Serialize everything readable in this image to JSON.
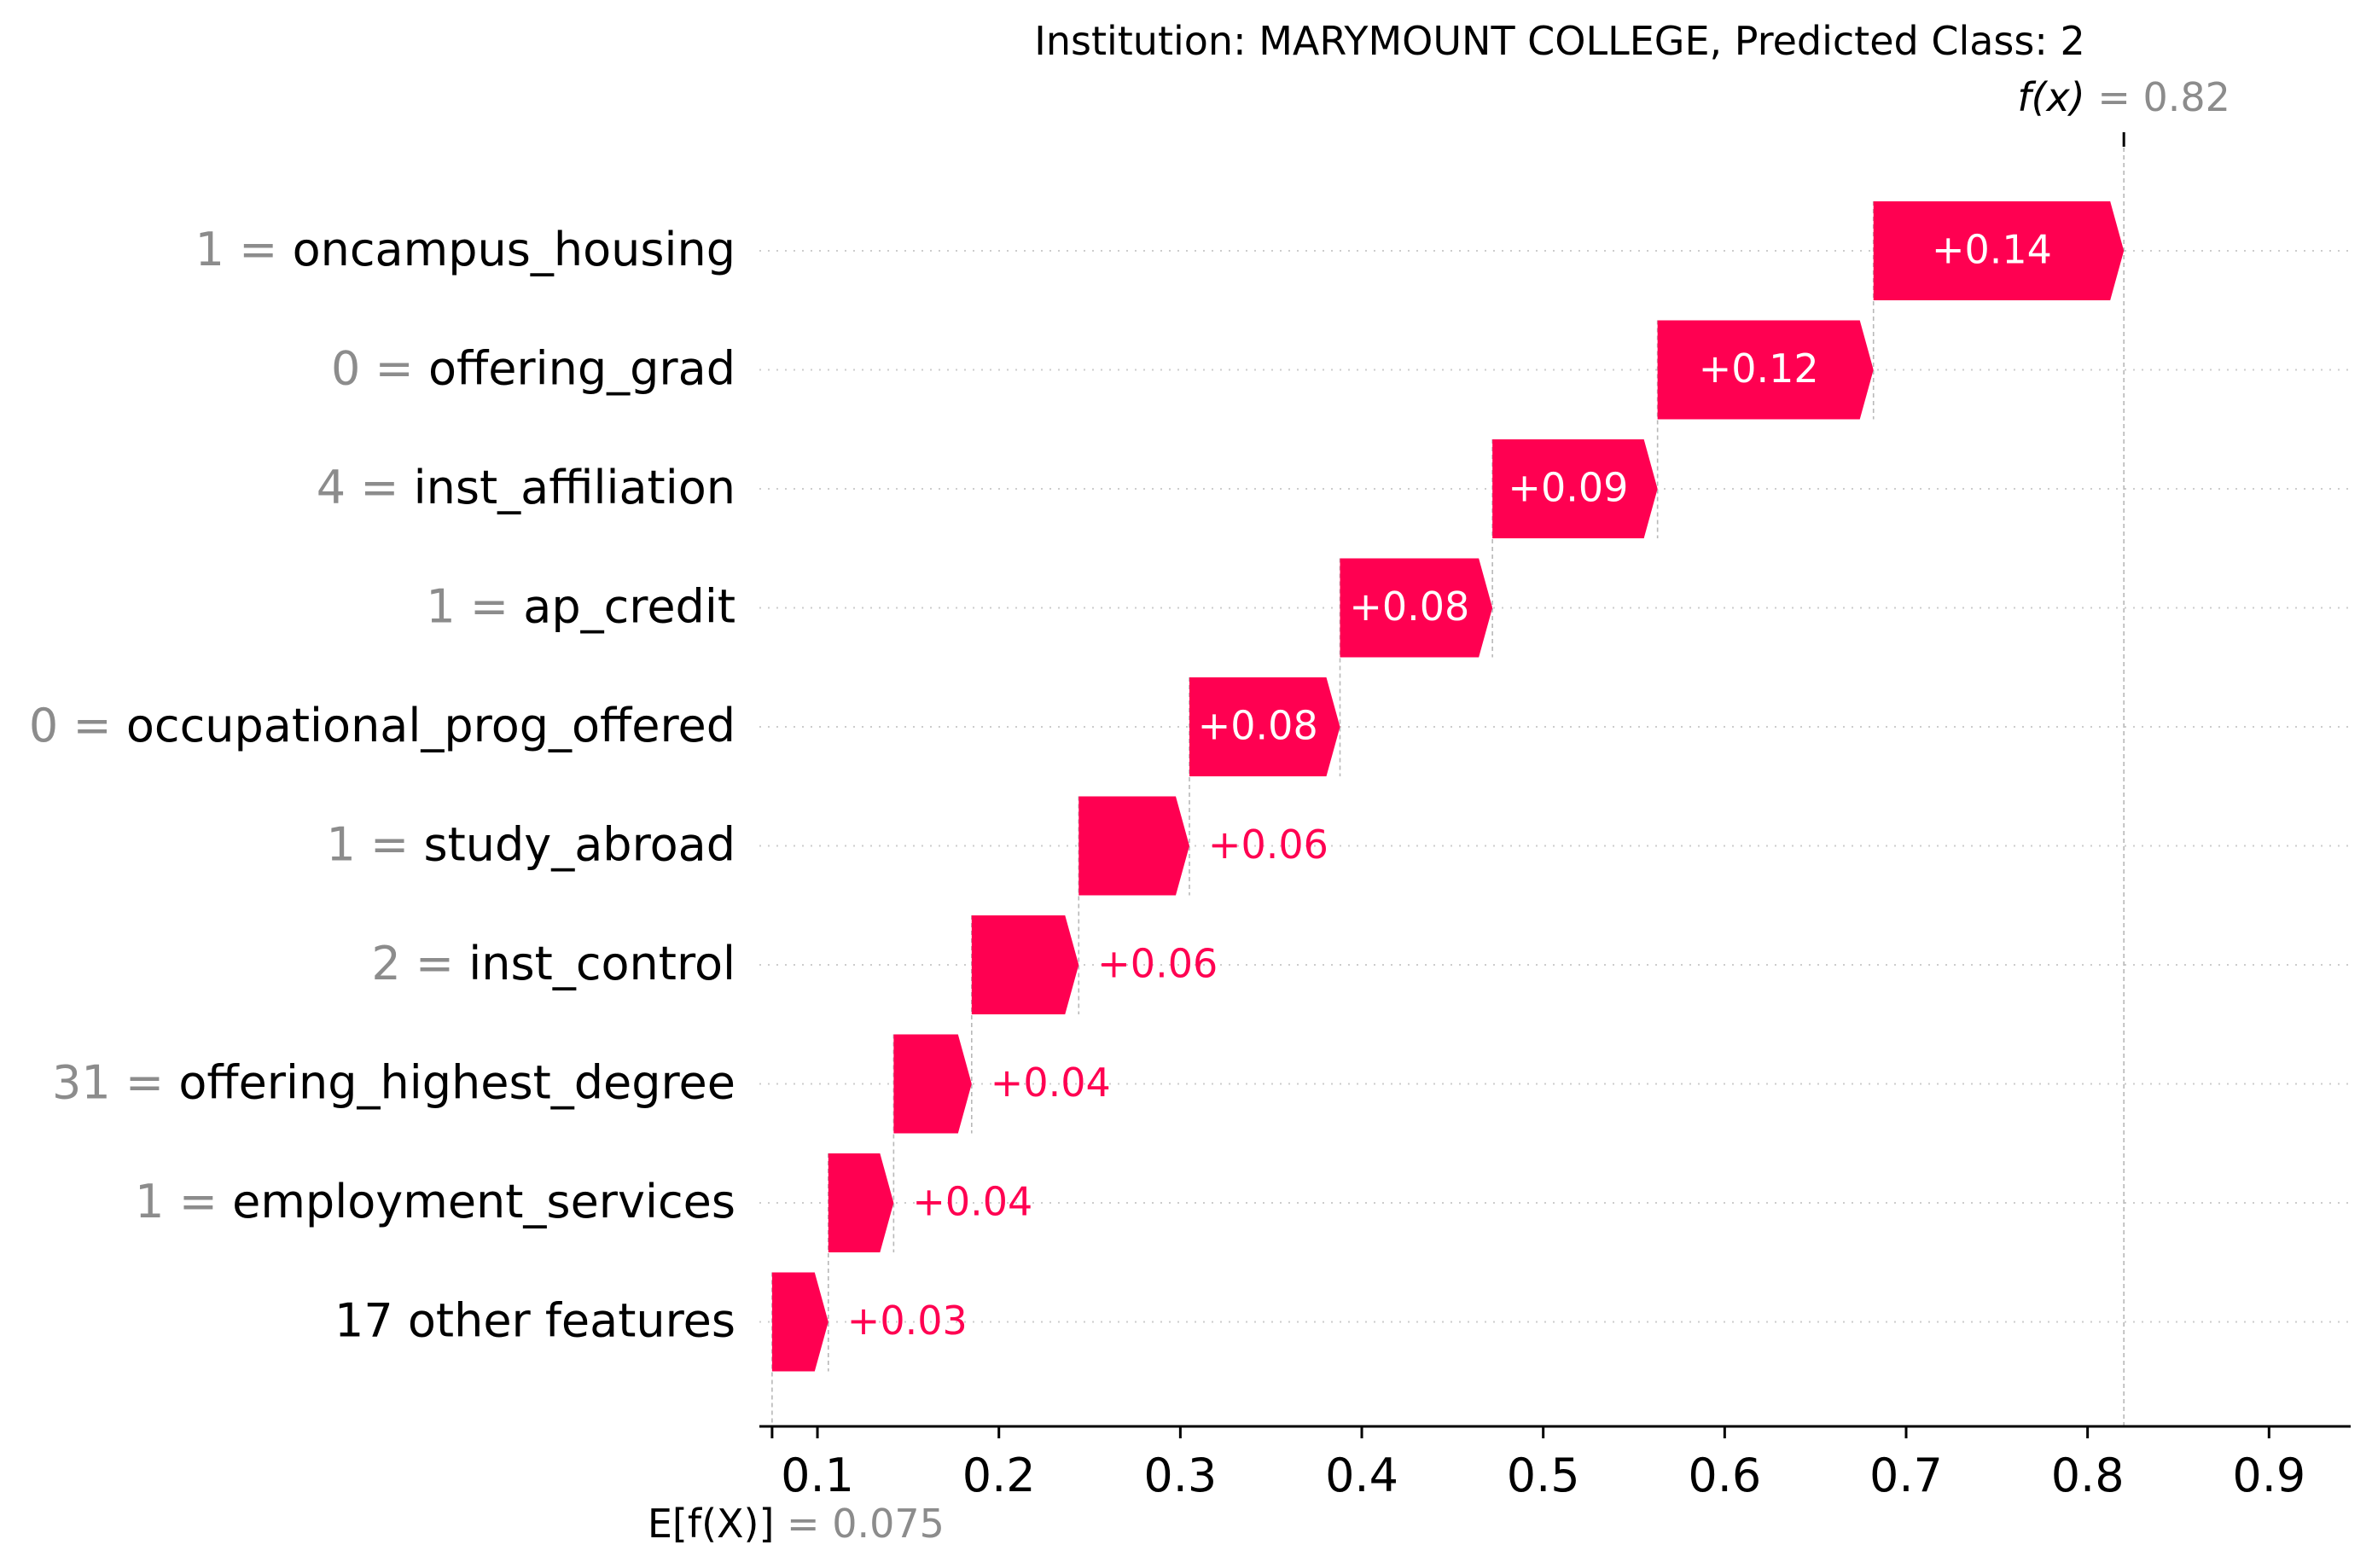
{
  "chart_data": {
    "type": "waterfall",
    "title": "Institution: MARYMOUNT COLLEGE, Predicted Class: 2",
    "base_value": 0.075,
    "base_value_label": "0.075",
    "base_symbol": "E[f(X)]",
    "output_value": 0.82,
    "output_value_label": "0.82",
    "output_symbol": "f(x)",
    "xlim": [
      0.068,
      0.945
    ],
    "x_ticks": [
      0.1,
      0.2,
      0.3,
      0.4,
      0.5,
      0.6,
      0.7,
      0.8,
      0.9
    ],
    "x_tick_labels": [
      "0.1",
      "0.2",
      "0.3",
      "0.4",
      "0.5",
      "0.6",
      "0.7",
      "0.8",
      "0.9"
    ],
    "positive_color": "#ff0051",
    "features": [
      {
        "value": "1",
        "name": "oncampus_housing",
        "start": 0.682,
        "end": 0.82,
        "label": "+0.14"
      },
      {
        "value": "0",
        "name": "offering_grad",
        "start": 0.563,
        "end": 0.682,
        "label": "+0.12"
      },
      {
        "value": "4",
        "name": "inst_affiliation",
        "start": 0.472,
        "end": 0.563,
        "label": "+0.09"
      },
      {
        "value": "1",
        "name": "ap_credit",
        "start": 0.388,
        "end": 0.472,
        "label": "+0.08"
      },
      {
        "value": "0",
        "name": "occupational_prog_offered",
        "start": 0.305,
        "end": 0.388,
        "label": "+0.08"
      },
      {
        "value": "1",
        "name": "study_abroad",
        "start": 0.244,
        "end": 0.305,
        "label": "+0.06"
      },
      {
        "value": "2",
        "name": "inst_control",
        "start": 0.185,
        "end": 0.244,
        "label": "+0.06"
      },
      {
        "value": "31",
        "name": "offering_highest_degree",
        "start": 0.142,
        "end": 0.185,
        "label": "+0.04"
      },
      {
        "value": "1",
        "name": "employment_services",
        "start": 0.106,
        "end": 0.142,
        "label": "+0.04"
      },
      {
        "value": "",
        "name": "17 other features",
        "start": 0.075,
        "end": 0.106,
        "label": "+0.03"
      }
    ]
  }
}
